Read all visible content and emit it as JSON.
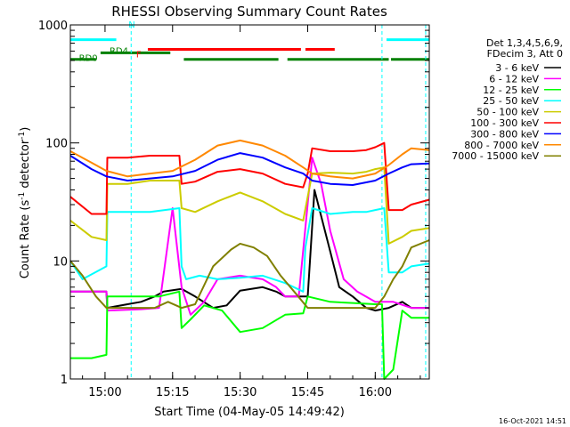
{
  "chart_data": {
    "type": "line",
    "title": "RHESSI Observing Summary Count Rates",
    "xlabel": "Start Time (04-May-05 14:49:42)",
    "ylabel": "Count Rate (s⁻¹ detector⁻¹)",
    "ylabel_parts": {
      "a": "Count Rate (s",
      "exp1": "-1",
      "b": " detector",
      "exp2": "-1",
      "c": ")"
    },
    "yscale": "log",
    "ylim": [
      1,
      1000
    ],
    "xlim_min": [
      -7.7,
      72
    ],
    "x_unit": "minutes after 15:00",
    "x_ticks": [
      {
        "label": "15:00",
        "x": 0
      },
      {
        "label": "15:15",
        "x": 15
      },
      {
        "label": "15:30",
        "x": 30
      },
      {
        "label": "15:45",
        "x": 45
      },
      {
        "label": "16:00",
        "x": 60
      },
      {
        "label": "16:15",
        "x": 75
      }
    ],
    "y_ticks": [
      {
        "label": "1",
        "y": 1
      },
      {
        "label": "10",
        "y": 10
      },
      {
        "label": "100",
        "y": 100
      },
      {
        "label": "1000",
        "y": 1000
      }
    ],
    "legend_header": [
      "Det 1,3,4,5,6,9,",
      "FDecim 3, Att 0"
    ],
    "legend_position": "right",
    "series": [
      {
        "name": "3 - 6 keV",
        "color": "#000000",
        "points": [
          [
            -7.7,
            5.5
          ],
          [
            0.3,
            5.5
          ],
          [
            0.5,
            4.0
          ],
          [
            5,
            4.3
          ],
          [
            8,
            4.5
          ],
          [
            11,
            5.0
          ],
          [
            13,
            5.5
          ],
          [
            17,
            5.8
          ],
          [
            20,
            5.0
          ],
          [
            24,
            4.0
          ],
          [
            27,
            4.2
          ],
          [
            30,
            5.6
          ],
          [
            35,
            6.0
          ],
          [
            38,
            5.5
          ],
          [
            40,
            5.0
          ],
          [
            42,
            5.0
          ],
          [
            45,
            5.0
          ],
          [
            46.5,
            40
          ],
          [
            50,
            12
          ],
          [
            52,
            6
          ],
          [
            55,
            5.0
          ],
          [
            58,
            4.0
          ],
          [
            60,
            3.8
          ],
          [
            63,
            4.0
          ],
          [
            66,
            4.5
          ],
          [
            68,
            4.0
          ],
          [
            72,
            4.0
          ]
        ]
      },
      {
        "name": "6 - 12 keV",
        "color": "#ff00ff",
        "points": [
          [
            -7.7,
            5.5
          ],
          [
            0.3,
            5.5
          ],
          [
            0.5,
            3.8
          ],
          [
            8,
            3.9
          ],
          [
            12,
            4.0
          ],
          [
            15,
            28
          ],
          [
            17,
            6
          ],
          [
            19,
            3.5
          ],
          [
            22,
            4.5
          ],
          [
            25,
            7
          ],
          [
            30,
            7.5
          ],
          [
            35,
            7.0
          ],
          [
            38,
            6.0
          ],
          [
            40,
            5.0
          ],
          [
            43,
            5.0
          ],
          [
            46,
            75
          ],
          [
            48,
            45
          ],
          [
            50,
            18
          ],
          [
            53,
            7
          ],
          [
            56,
            5.5
          ],
          [
            60,
            4.5
          ],
          [
            64,
            4.5
          ],
          [
            68,
            4.0
          ],
          [
            72,
            4.0
          ]
        ]
      },
      {
        "name": "12 - 25 keV",
        "color": "#00ff00",
        "points": [
          [
            -7.7,
            1.5
          ],
          [
            -3,
            1.5
          ],
          [
            0.3,
            1.6
          ],
          [
            0.5,
            5.0
          ],
          [
            8,
            5.0
          ],
          [
            12,
            5.0
          ],
          [
            16.5,
            5.5
          ],
          [
            17,
            2.7
          ],
          [
            19,
            3.2
          ],
          [
            22,
            4.2
          ],
          [
            26,
            3.8
          ],
          [
            30,
            2.5
          ],
          [
            35,
            2.7
          ],
          [
            40,
            3.5
          ],
          [
            44,
            3.6
          ],
          [
            45,
            5.0
          ],
          [
            50,
            4.5
          ],
          [
            55,
            4.4
          ],
          [
            60,
            4.3
          ],
          [
            61.5,
            4.3
          ],
          [
            62,
            1.0
          ],
          [
            64,
            1.2
          ],
          [
            66,
            3.8
          ],
          [
            68,
            3.3
          ],
          [
            72,
            3.3
          ]
        ]
      },
      {
        "name": "25 - 50 keV",
        "color": "#00ffff",
        "points": [
          [
            -7.7,
            10
          ],
          [
            -5,
            7
          ],
          [
            0.3,
            9
          ],
          [
            0.5,
            26
          ],
          [
            5,
            26
          ],
          [
            10,
            26
          ],
          [
            16.5,
            28
          ],
          [
            17,
            9
          ],
          [
            18,
            7
          ],
          [
            21,
            7.5
          ],
          [
            25,
            7.0
          ],
          [
            30,
            7.2
          ],
          [
            35,
            7.5
          ],
          [
            40,
            6.5
          ],
          [
            44,
            5.5
          ],
          [
            44.5,
            13
          ],
          [
            46,
            28
          ],
          [
            50,
            25
          ],
          [
            55,
            26
          ],
          [
            58,
            26
          ],
          [
            60,
            27
          ],
          [
            62,
            28
          ],
          [
            63,
            8
          ],
          [
            66,
            8
          ],
          [
            68,
            9
          ],
          [
            72,
            9.5
          ]
        ]
      },
      {
        "name": "50 - 100 keV",
        "color": "#cccc00",
        "points": [
          [
            -7.7,
            22
          ],
          [
            -3,
            16
          ],
          [
            0.3,
            15
          ],
          [
            0.5,
            45
          ],
          [
            5,
            45
          ],
          [
            10,
            48
          ],
          [
            16.5,
            48
          ],
          [
            17,
            28
          ],
          [
            20,
            26
          ],
          [
            25,
            32
          ],
          [
            30,
            38
          ],
          [
            35,
            32
          ],
          [
            40,
            25
          ],
          [
            44,
            22
          ],
          [
            45,
            35
          ],
          [
            46,
            55
          ],
          [
            50,
            56
          ],
          [
            55,
            55
          ],
          [
            58,
            57
          ],
          [
            60,
            60
          ],
          [
            62,
            62
          ],
          [
            63,
            14
          ],
          [
            66,
            16
          ],
          [
            68,
            18
          ],
          [
            72,
            19
          ]
        ]
      },
      {
        "name": "100 - 300 keV",
        "color": "#ff0000",
        "points": [
          [
            -7.7,
            35
          ],
          [
            -3,
            25
          ],
          [
            0.3,
            25
          ],
          [
            0.5,
            75
          ],
          [
            5,
            75
          ],
          [
            10,
            78
          ],
          [
            16.5,
            78
          ],
          [
            17,
            45
          ],
          [
            20,
            47
          ],
          [
            25,
            57
          ],
          [
            30,
            60
          ],
          [
            35,
            55
          ],
          [
            40,
            45
          ],
          [
            44,
            42
          ],
          [
            45,
            55
          ],
          [
            46,
            90
          ],
          [
            50,
            85
          ],
          [
            55,
            85
          ],
          [
            58,
            87
          ],
          [
            60,
            92
          ],
          [
            62,
            100
          ],
          [
            63,
            27
          ],
          [
            66,
            27
          ],
          [
            68,
            30
          ],
          [
            72,
            33
          ]
        ]
      },
      {
        "name": "300 - 800 keV",
        "color": "#0000ff",
        "points": [
          [
            -7.7,
            78
          ],
          [
            -3,
            60
          ],
          [
            0.3,
            52
          ],
          [
            5,
            48
          ],
          [
            10,
            50
          ],
          [
            15,
            52
          ],
          [
            20,
            58
          ],
          [
            25,
            72
          ],
          [
            30,
            82
          ],
          [
            35,
            75
          ],
          [
            40,
            62
          ],
          [
            44,
            55
          ],
          [
            46,
            48
          ],
          [
            50,
            45
          ],
          [
            55,
            44
          ],
          [
            60,
            48
          ],
          [
            63,
            55
          ],
          [
            66,
            62
          ],
          [
            68,
            66
          ],
          [
            72,
            67
          ]
        ]
      },
      {
        "name": "800 - 7000 keV",
        "color": "#ff8800",
        "points": [
          [
            -7.7,
            85
          ],
          [
            -3,
            68
          ],
          [
            0.3,
            58
          ],
          [
            5,
            52
          ],
          [
            10,
            55
          ],
          [
            15,
            58
          ],
          [
            20,
            72
          ],
          [
            25,
            95
          ],
          [
            30,
            105
          ],
          [
            35,
            95
          ],
          [
            40,
            78
          ],
          [
            44,
            62
          ],
          [
            46,
            55
          ],
          [
            50,
            52
          ],
          [
            55,
            50
          ],
          [
            60,
            55
          ],
          [
            63,
            65
          ],
          [
            66,
            80
          ],
          [
            68,
            90
          ],
          [
            72,
            87
          ]
        ]
      },
      {
        "name": "7000 - 15000 keV",
        "color": "#808000",
        "points": [
          [
            -7.7,
            10
          ],
          [
            -5,
            7.5
          ],
          [
            -2,
            5
          ],
          [
            0.3,
            4.0
          ],
          [
            5,
            4.0
          ],
          [
            8,
            4.0
          ],
          [
            11,
            4.0
          ],
          [
            14,
            4.5
          ],
          [
            17,
            4.0
          ],
          [
            20,
            4.3
          ],
          [
            24,
            9
          ],
          [
            28,
            12.5
          ],
          [
            30,
            14
          ],
          [
            33,
            13
          ],
          [
            36,
            11
          ],
          [
            39,
            7.5
          ],
          [
            42,
            5.5
          ],
          [
            45,
            4.0
          ],
          [
            50,
            4.0
          ],
          [
            55,
            4.0
          ],
          [
            60,
            4.0
          ],
          [
            62,
            5
          ],
          [
            64,
            7
          ],
          [
            66,
            9
          ],
          [
            68,
            13
          ],
          [
            72,
            15
          ]
        ]
      }
    ],
    "status_bars": [
      {
        "label": "N",
        "color": "#00ffff",
        "level": 750,
        "segments": [
          [
            -7.7,
            2.5
          ],
          [
            62.5,
            72
          ]
        ]
      },
      {
        "label": "F",
        "color": "#ff0000",
        "level": 620,
        "segments": [
          [
            9.5,
            43.5
          ],
          [
            44.5,
            51
          ]
        ]
      },
      {
        "label": "RD0",
        "color": "#008000",
        "level": 510,
        "segments": [
          [
            -7.7,
            -2
          ],
          [
            17.5,
            38.5
          ],
          [
            40.5,
            63
          ],
          [
            63.5,
            72
          ]
        ]
      },
      {
        "label": "RD4",
        "color": "#008000",
        "level": 580,
        "segments": [
          [
            -1,
            14.5
          ]
        ]
      }
    ],
    "vlines": [
      {
        "x": 5.8,
        "color": "#00ffff",
        "style": "dashed"
      },
      {
        "x": 61.5,
        "color": "#00ffff",
        "style": "dashed"
      },
      {
        "x": 71.2,
        "color": "#00ffff",
        "style": "dashed"
      }
    ]
  },
  "footer_date": "16-Oct-2021 14:51"
}
